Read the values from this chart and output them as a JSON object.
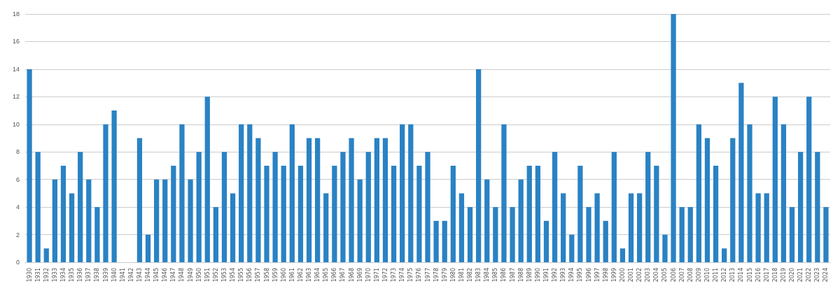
{
  "chart_data": {
    "type": "bar",
    "categories": [
      "1930",
      "1931",
      "1932",
      "1933",
      "1934",
      "1935",
      "1936",
      "1937",
      "1938",
      "1939",
      "1940",
      "1941",
      "1942",
      "1943",
      "1944",
      "1945",
      "1946",
      "1947",
      "1948",
      "1949",
      "1950",
      "1951",
      "1952",
      "1953",
      "1954",
      "1955",
      "1956",
      "1957",
      "1958",
      "1959",
      "1960",
      "1961",
      "1962",
      "1963",
      "1964",
      "1965",
      "1966",
      "1967",
      "1968",
      "1969",
      "1970",
      "1971",
      "1972",
      "1973",
      "1974",
      "1975",
      "1976",
      "1977",
      "1978",
      "1979",
      "1980",
      "1981",
      "1982",
      "1983",
      "1984",
      "1985",
      "1986",
      "1987",
      "1988",
      "1989",
      "1990",
      "1991",
      "1992",
      "1993",
      "1994",
      "1995",
      "1996",
      "1997",
      "1998",
      "1999",
      "2000",
      "2001",
      "2002",
      "2003",
      "2004",
      "2005",
      "2006",
      "2007",
      "2008",
      "2009",
      "2010",
      "2011",
      "2012",
      "2013",
      "2014",
      "2015",
      "2016",
      "2017",
      "2018",
      "2019",
      "2020",
      "2021",
      "2022",
      "2023",
      "2024"
    ],
    "values": [
      14,
      8,
      1,
      6,
      7,
      5,
      8,
      6,
      4,
      10,
      11,
      0,
      0,
      9,
      2,
      6,
      6,
      7,
      10,
      6,
      8,
      12,
      4,
      8,
      5,
      10,
      10,
      9,
      7,
      8,
      7,
      10,
      7,
      9,
      9,
      5,
      7,
      8,
      9,
      6,
      8,
      9,
      9,
      7,
      10,
      10,
      7,
      8,
      3,
      3,
      7,
      5,
      4,
      14,
      6,
      4,
      10,
      4,
      6,
      7,
      7,
      3,
      8,
      5,
      2,
      7,
      4,
      5,
      3,
      8,
      1,
      5,
      5,
      8,
      7,
      2,
      18,
      4,
      4,
      10,
      9,
      7,
      1,
      9,
      13,
      10,
      5,
      5,
      12,
      10,
      4,
      8,
      12,
      8,
      4
    ],
    "color": "#2a82c4",
    "ylim": [
      0,
      18
    ],
    "yticks": [
      0,
      2,
      4,
      6,
      8,
      10,
      12,
      14,
      16,
      18
    ],
    "grid": "y"
  }
}
